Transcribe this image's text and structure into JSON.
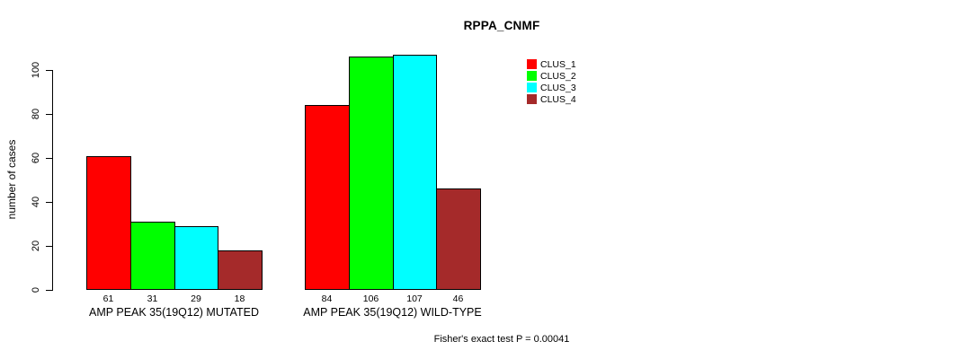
{
  "chart_data": {
    "type": "bar",
    "title": "RPPA_CNMF",
    "ylabel": "number of cases",
    "xlabel": "",
    "ylim": [
      0,
      108
    ],
    "yticks": [
      0,
      20,
      40,
      60,
      80,
      100
    ],
    "grid": false,
    "legend_position": "right-outside-top",
    "categories": [
      "AMP PEAK 35(19Q12) MUTATED",
      "AMP PEAK 35(19Q12) WILD-TYPE"
    ],
    "series": [
      {
        "name": "CLUS_1",
        "color": "#ff0000",
        "values": [
          61,
          84
        ]
      },
      {
        "name": "CLUS_2",
        "color": "#00ff00",
        "values": [
          31,
          106
        ]
      },
      {
        "name": "CLUS_3",
        "color": "#00ffff",
        "values": [
          29,
          107
        ]
      },
      {
        "name": "CLUS_4",
        "color": "#a52a2a",
        "values": [
          18,
          46
        ]
      }
    ],
    "bar_values_shown": true,
    "annotation": "Fisher's exact test P = 0.00041"
  },
  "colors": {
    "background": "#ffffff",
    "axis": "#000000",
    "bar_border": "#000000",
    "text": "#000000"
  }
}
